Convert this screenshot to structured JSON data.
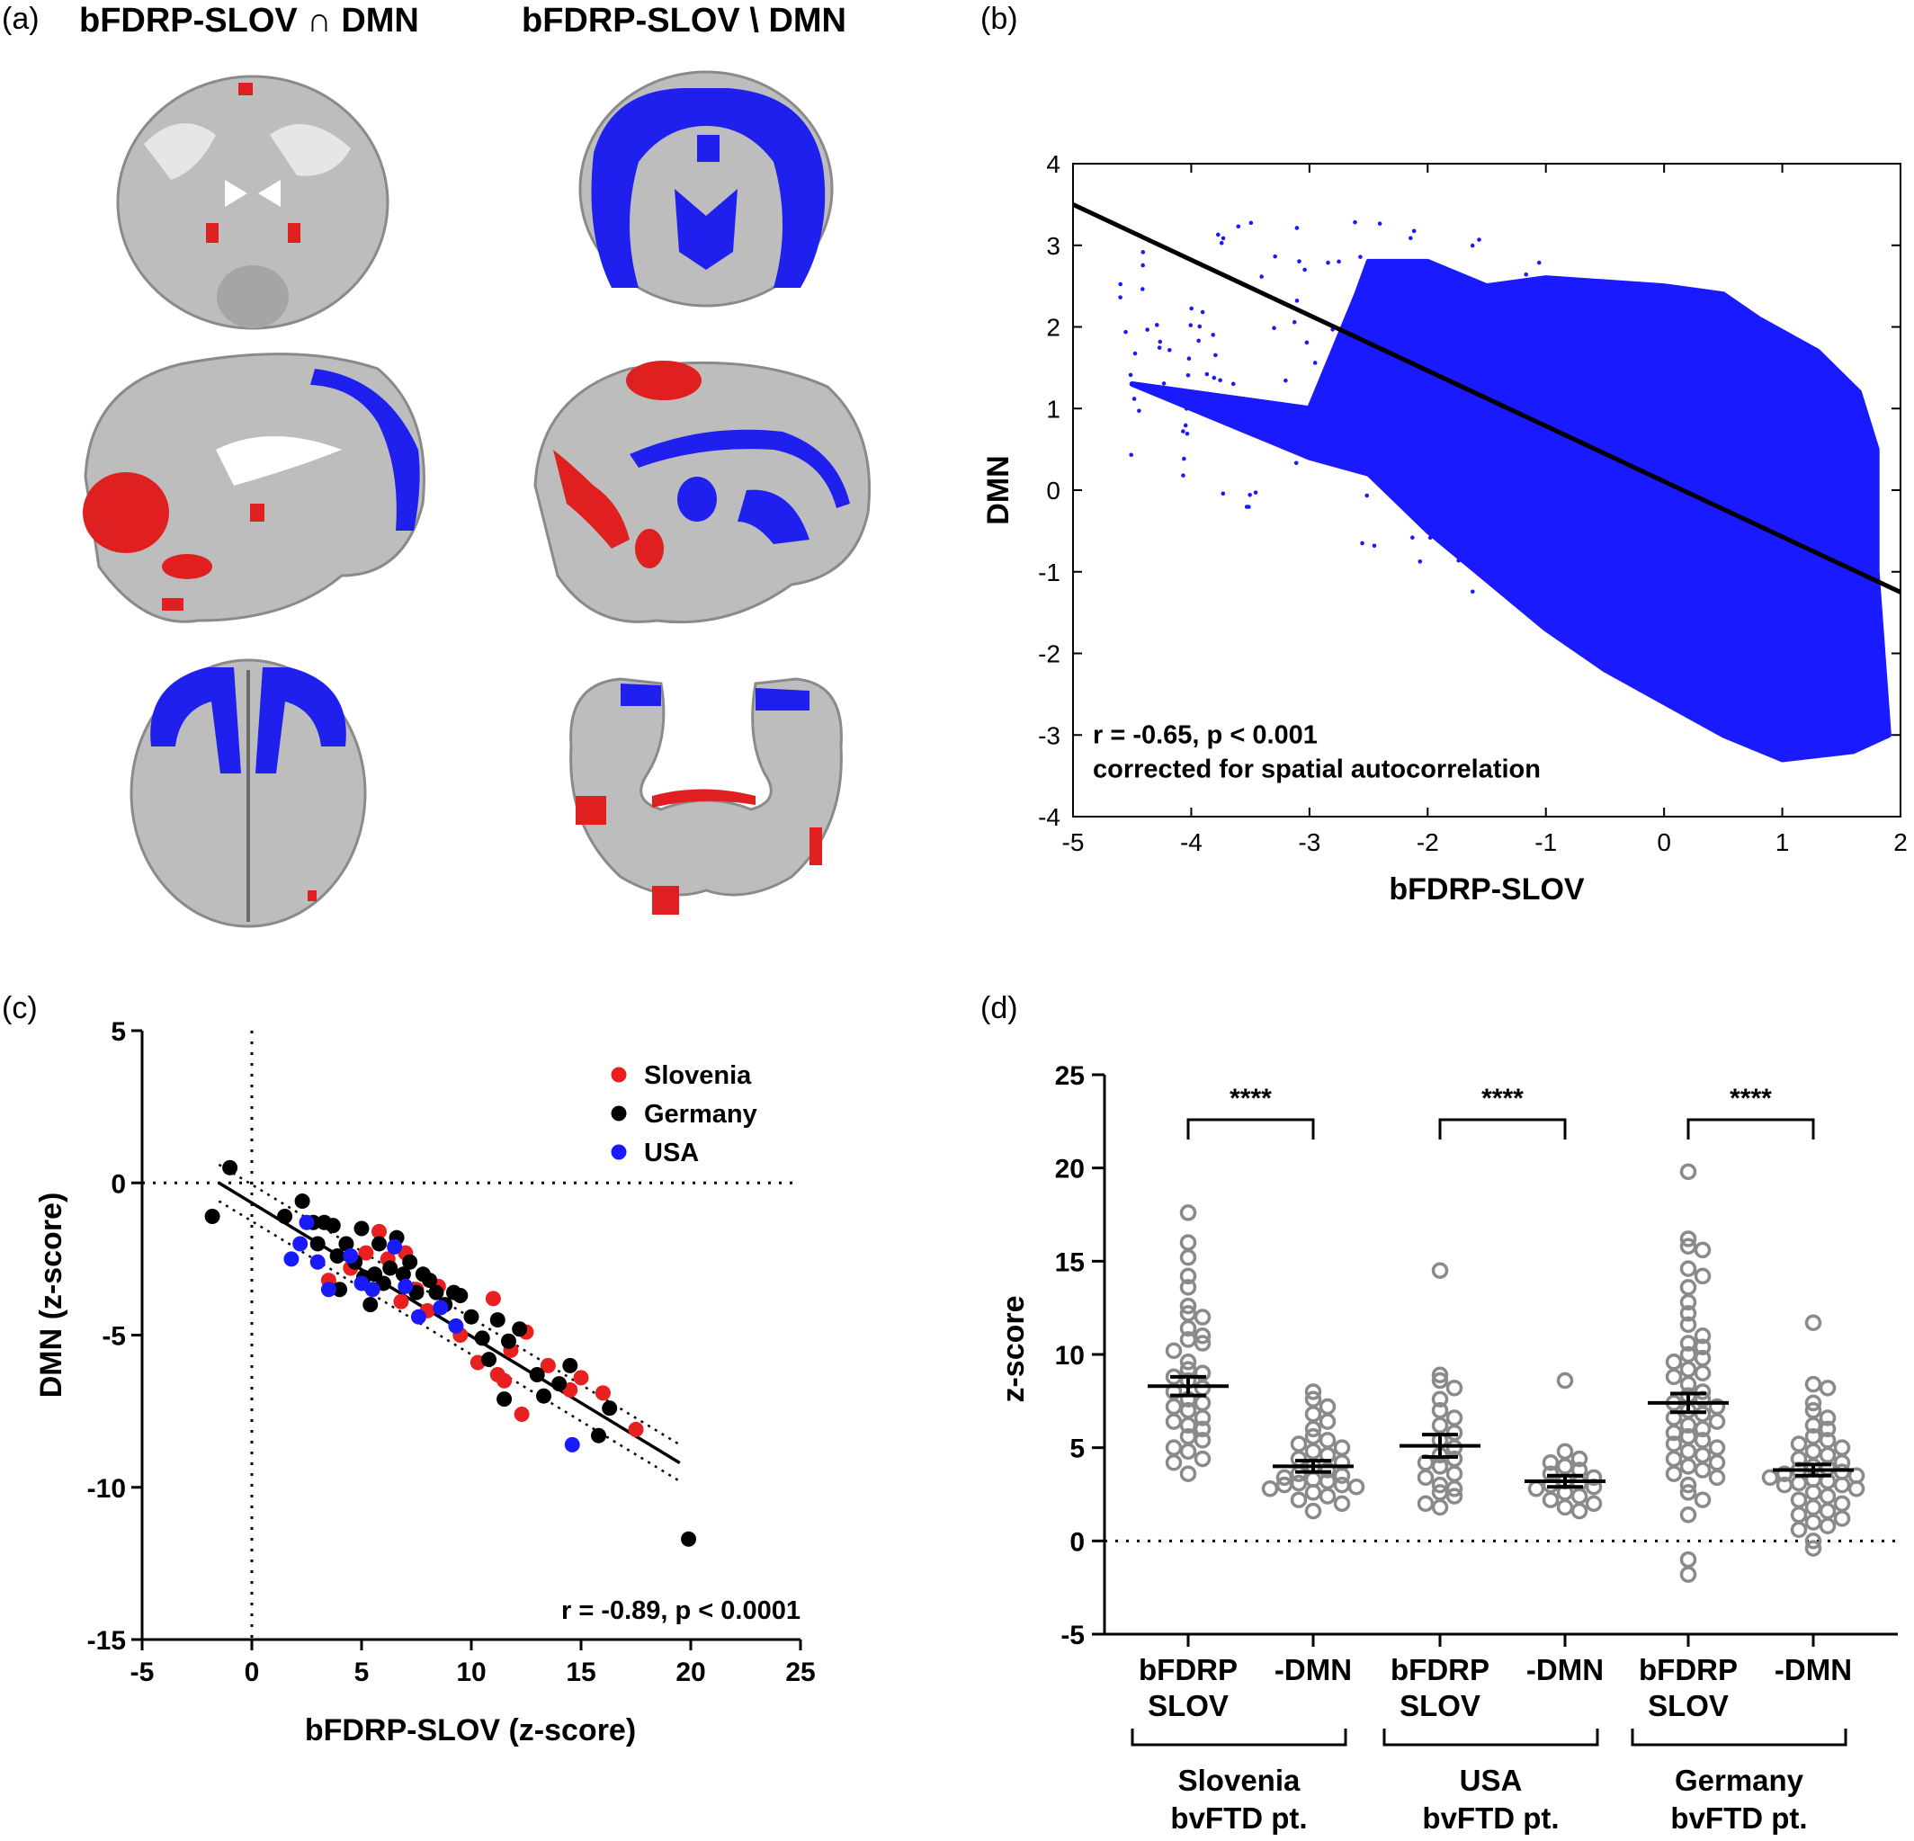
{
  "panels": {
    "a": {
      "label": "(a)",
      "title_left": "bFDRP-SLOV ∩ DMN",
      "title_right": "bFDRP-SLOV \\ DMN",
      "colors": {
        "overlap": "#e02020",
        "difference": "#2020ee"
      }
    },
    "b": {
      "label": "(b)"
    },
    "c": {
      "label": "(c)"
    },
    "d": {
      "label": "(d)"
    }
  },
  "chart_data": [
    {
      "panel": "b",
      "type": "scatter",
      "xlabel": "bFDRP-SLOV",
      "ylabel": "DMN",
      "xlim": [
        -5,
        2
      ],
      "ylim": [
        -4,
        4
      ],
      "xticks": [
        -5,
        -4,
        -3,
        -2,
        -1,
        0,
        1,
        2
      ],
      "yticks": [
        -4,
        -3,
        -2,
        -1,
        0,
        1,
        2,
        3,
        4
      ],
      "point_color": "#1a1aff",
      "fit_line": {
        "x": [
          -5,
          2
        ],
        "y": [
          3.5,
          -1.25
        ],
        "color": "#000000"
      },
      "cloud_outline": [
        [
          -4.5,
          1.3
        ],
        [
          -3.0,
          1.0
        ],
        [
          -2.6,
          2.4
        ],
        [
          -2.5,
          2.8
        ],
        [
          -2.0,
          2.8
        ],
        [
          -1.5,
          2.5
        ],
        [
          -1.0,
          2.6
        ],
        [
          0.0,
          2.5
        ],
        [
          0.5,
          2.4
        ],
        [
          0.8,
          2.1
        ],
        [
          1.3,
          1.7
        ],
        [
          1.65,
          1.2
        ],
        [
          1.8,
          0.5
        ],
        [
          1.8,
          -1.0
        ],
        [
          1.9,
          -3.0
        ],
        [
          1.6,
          -3.2
        ],
        [
          1.0,
          -3.3
        ],
        [
          0.5,
          -3.0
        ],
        [
          0.0,
          -2.6
        ],
        [
          -0.5,
          -2.2
        ],
        [
          -1.0,
          -1.7
        ],
        [
          -1.5,
          -1.1
        ],
        [
          -2.0,
          -0.5
        ],
        [
          -2.5,
          0.2
        ],
        [
          -3.0,
          0.4
        ],
        [
          -4.5,
          1.3
        ]
      ],
      "annotation_lines": [
        "r = -0.65, p < 0.001",
        "corrected for spatial autocorrelation"
      ]
    },
    {
      "panel": "c",
      "type": "scatter",
      "xlabel": "bFDRP-SLOV (z-score)",
      "ylabel": "DMN (z-score)",
      "xlim": [
        -5,
        25
      ],
      "ylim": [
        -15,
        5
      ],
      "xticks": [
        -5,
        0,
        5,
        10,
        15,
        20,
        25
      ],
      "yticks": [
        -15,
        -10,
        -5,
        0,
        5
      ],
      "series": [
        {
          "name": "Slovenia",
          "color": "#e82020",
          "points": [
            [
              3.5,
              -3.2
            ],
            [
              4.5,
              -2.8
            ],
            [
              5.2,
              -2.3
            ],
            [
              5.8,
              -1.6
            ],
            [
              6.2,
              -2.5
            ],
            [
              6.8,
              -3.9
            ],
            [
              7.0,
              -2.3
            ],
            [
              7.5,
              -3.5
            ],
            [
              8.0,
              -4.2
            ],
            [
              8.5,
              -3.4
            ],
            [
              9.5,
              -5.0
            ],
            [
              10.3,
              -5.9
            ],
            [
              11.0,
              -3.8
            ],
            [
              11.2,
              -6.3
            ],
            [
              11.5,
              -6.5
            ],
            [
              11.8,
              -5.5
            ],
            [
              12.3,
              -7.6
            ],
            [
              12.5,
              -4.9
            ],
            [
              13.5,
              -6.0
            ],
            [
              14.5,
              -6.8
            ],
            [
              15.0,
              -6.4
            ],
            [
              16.0,
              -6.9
            ],
            [
              17.5,
              -8.1
            ]
          ]
        },
        {
          "name": "Germany",
          "color": "#000000",
          "points": [
            [
              -1.8,
              -1.1
            ],
            [
              -1.0,
              0.5
            ],
            [
              1.5,
              -1.1
            ],
            [
              2.3,
              -0.6
            ],
            [
              2.8,
              -1.3
            ],
            [
              3.0,
              -2.0
            ],
            [
              3.3,
              -1.3
            ],
            [
              3.7,
              -1.4
            ],
            [
              3.9,
              -2.4
            ],
            [
              4.0,
              -3.5
            ],
            [
              4.3,
              -2.0
            ],
            [
              4.7,
              -2.6
            ],
            [
              5.0,
              -1.5
            ],
            [
              5.1,
              -3.1
            ],
            [
              5.4,
              -4.0
            ],
            [
              5.6,
              -3.0
            ],
            [
              5.8,
              -2.0
            ],
            [
              6.0,
              -3.3
            ],
            [
              6.3,
              -2.8
            ],
            [
              6.6,
              -1.8
            ],
            [
              6.9,
              -3.0
            ],
            [
              7.2,
              -2.6
            ],
            [
              7.5,
              -3.6
            ],
            [
              7.8,
              -3.0
            ],
            [
              8.1,
              -3.2
            ],
            [
              8.4,
              -3.6
            ],
            [
              8.8,
              -4.0
            ],
            [
              9.2,
              -3.6
            ],
            [
              9.5,
              -3.7
            ],
            [
              10.0,
              -4.4
            ],
            [
              10.5,
              -5.1
            ],
            [
              10.8,
              -5.8
            ],
            [
              11.2,
              -4.5
            ],
            [
              11.7,
              -5.2
            ],
            [
              11.5,
              -7.1
            ],
            [
              12.2,
              -4.8
            ],
            [
              13.0,
              -6.3
            ],
            [
              13.3,
              -7.0
            ],
            [
              14.0,
              -6.6
            ],
            [
              14.5,
              -6.0
            ],
            [
              16.3,
              -7.4
            ],
            [
              15.8,
              -8.3
            ],
            [
              19.9,
              -11.7
            ]
          ]
        },
        {
          "name": "USA",
          "color": "#1a1aff",
          "points": [
            [
              1.8,
              -2.5
            ],
            [
              2.2,
              -2.0
            ],
            [
              2.5,
              -1.3
            ],
            [
              3.0,
              -2.6
            ],
            [
              3.5,
              -3.5
            ],
            [
              4.5,
              -2.4
            ],
            [
              5.0,
              -3.3
            ],
            [
              5.5,
              -3.5
            ],
            [
              6.5,
              -2.1
            ],
            [
              7.0,
              -3.4
            ],
            [
              7.6,
              -4.4
            ],
            [
              8.6,
              -4.1
            ],
            [
              9.3,
              -4.7
            ],
            [
              14.6,
              -8.6
            ]
          ]
        }
      ],
      "fit_line": {
        "x": [
          -1.5,
          19.5
        ],
        "y": [
          0.0,
          -9.2
        ]
      },
      "ci_upper": {
        "x": [
          -1.5,
          19.5
        ],
        "y": [
          0.6,
          -8.6
        ]
      },
      "ci_lower": {
        "x": [
          -1.5,
          19.5
        ],
        "y": [
          -0.6,
          -9.8
        ]
      },
      "zero_lines": true,
      "legend_position": "top-right",
      "annotation": "r = -0.89, p < 0.0001"
    },
    {
      "panel": "d",
      "type": "scatter",
      "ylabel": "z-score",
      "ylim": [
        -5,
        25
      ],
      "yticks": [
        -5,
        0,
        5,
        10,
        15,
        20,
        25
      ],
      "point_color": "#8a8a8a",
      "categories": [
        {
          "label_lines": [
            "bFDRP",
            "SLOV"
          ],
          "mean": 8.3,
          "sem": 0.5,
          "values": [
            17.6,
            16.0,
            15.2,
            14.2,
            13.6,
            12.6,
            12.2,
            12.0,
            11.4,
            11.0,
            10.8,
            10.6,
            10.2,
            9.6,
            9.2,
            9.0,
            8.8,
            8.6,
            8.2,
            8.0,
            7.6,
            7.4,
            7.2,
            7.0,
            6.6,
            6.4,
            6.2,
            6.0,
            5.6,
            5.4,
            5.0,
            4.8,
            4.4,
            4.2,
            3.6
          ]
        },
        {
          "label_lines": [
            "-DMN"
          ],
          "mean": 4.0,
          "sem": 0.3,
          "values": [
            8.0,
            7.6,
            7.2,
            6.8,
            6.4,
            6.0,
            5.6,
            5.4,
            5.2,
            5.0,
            4.8,
            4.6,
            4.4,
            4.2,
            4.0,
            3.8,
            3.6,
            3.5,
            3.4,
            3.3,
            3.2,
            3.1,
            3.0,
            3.0,
            2.9,
            2.8,
            2.6,
            2.4,
            2.2,
            2.0,
            1.6
          ]
        },
        {
          "label_lines": [
            "bFDRP",
            "SLOV"
          ],
          "mean": 5.1,
          "sem": 0.6,
          "values": [
            14.5,
            8.9,
            8.6,
            8.2,
            7.6,
            7.0,
            6.6,
            6.2,
            5.8,
            5.4,
            5.0,
            4.6,
            4.4,
            4.2,
            4.0,
            3.6,
            3.4,
            3.0,
            2.8,
            2.6,
            2.4,
            2.0,
            1.8
          ]
        },
        {
          "label_lines": [
            "-DMN"
          ],
          "mean": 3.2,
          "sem": 0.3,
          "values": [
            8.6,
            4.8,
            4.4,
            4.2,
            4.0,
            3.8,
            3.6,
            3.4,
            3.2,
            3.1,
            3.0,
            2.9,
            2.8,
            2.6,
            2.4,
            2.2,
            2.0,
            1.8,
            1.6
          ]
        },
        {
          "label_lines": [
            "bFDRP",
            "SLOV"
          ],
          "mean": 7.4,
          "sem": 0.5,
          "values": [
            19.8,
            16.2,
            15.8,
            15.6,
            14.6,
            14.2,
            13.6,
            12.8,
            12.2,
            11.6,
            11.0,
            10.6,
            10.4,
            10.0,
            9.8,
            9.6,
            9.2,
            9.0,
            8.8,
            8.4,
            8.0,
            7.8,
            7.6,
            7.4,
            7.2,
            7.0,
            6.8,
            6.6,
            6.4,
            6.2,
            6.0,
            5.8,
            5.6,
            5.4,
            5.2,
            5.0,
            4.8,
            4.6,
            4.4,
            4.2,
            4.0,
            3.8,
            3.6,
            3.4,
            3.0,
            2.6,
            2.2,
            1.4,
            -1.0,
            -1.8
          ]
        },
        {
          "label_lines": [
            "-DMN"
          ],
          "mean": 3.8,
          "sem": 0.3,
          "values": [
            11.7,
            8.4,
            8.2,
            7.4,
            7.0,
            6.6,
            6.2,
            6.0,
            5.6,
            5.4,
            5.2,
            5.0,
            4.8,
            4.6,
            4.4,
            4.2,
            4.0,
            3.9,
            3.8,
            3.7,
            3.6,
            3.5,
            3.4,
            3.3,
            3.2,
            3.1,
            3.0,
            3.0,
            2.8,
            2.6,
            2.4,
            2.2,
            2.0,
            1.8,
            1.6,
            1.4,
            1.2,
            1.0,
            0.8,
            0.6,
            0.0,
            -0.4
          ]
        }
      ],
      "significance": [
        {
          "pair": [
            0,
            1
          ],
          "label": "****"
        },
        {
          "pair": [
            2,
            3
          ],
          "label": "****"
        },
        {
          "pair": [
            4,
            5
          ],
          "label": "****"
        }
      ],
      "groups": [
        {
          "span": [
            0,
            1
          ],
          "label_lines": [
            "Slovenia",
            "bvFTD pt."
          ]
        },
        {
          "span": [
            2,
            3
          ],
          "label_lines": [
            "USA",
            "bvFTD pt."
          ]
        },
        {
          "span": [
            4,
            5
          ],
          "label_lines": [
            "Germany",
            "bvFTD pt."
          ]
        }
      ],
      "zero_line": true
    }
  ]
}
